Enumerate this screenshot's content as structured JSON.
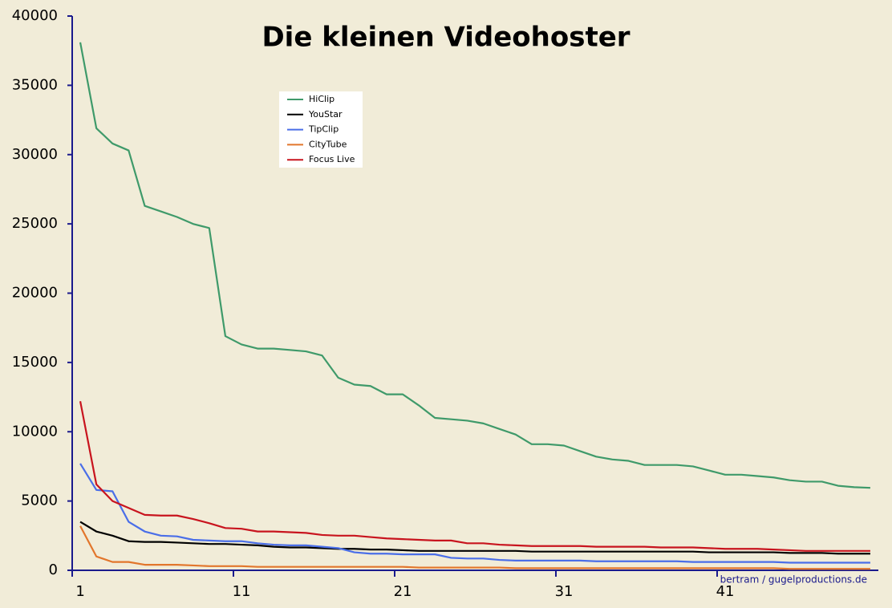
{
  "chart_data": {
    "type": "line",
    "title": "Die kleinen Videohoster",
    "annotation": "bertram / gugelproductions.de",
    "categories": [
      "1",
      null,
      null,
      null,
      null,
      null,
      null,
      null,
      null,
      null,
      "11",
      null,
      null,
      null,
      null,
      null,
      null,
      null,
      null,
      null,
      "21",
      null,
      null,
      null,
      null,
      null,
      null,
      null,
      null,
      null,
      "31",
      null,
      null,
      null,
      null,
      null,
      null,
      null,
      null,
      null,
      "41",
      null,
      null,
      null,
      null,
      null,
      null,
      null,
      null,
      null
    ],
    "ylim": [
      0,
      40000
    ],
    "yticks": [
      0,
      5000,
      10000,
      15000,
      20000,
      25000,
      30000,
      35000,
      40000
    ],
    "grid": false,
    "legend": "upper-left",
    "series": [
      {
        "name": "HiClip",
        "color": "#3f9a6a",
        "values": [
          38100,
          31900,
          30800,
          30300,
          26300,
          25900,
          25500,
          25000,
          24700,
          16900,
          16300,
          16000,
          16000,
          15900,
          15800,
          15500,
          13900,
          13400,
          13300,
          12700,
          12700,
          11900,
          11000,
          10900,
          10800,
          10600,
          10200,
          9800,
          9100,
          9100,
          9000,
          8600,
          8200,
          8000,
          7900,
          7600,
          7600,
          7600,
          7500,
          7200,
          6900,
          6900,
          6800,
          6700,
          6500,
          6400,
          6400,
          6100,
          6000,
          5950
        ]
      },
      {
        "name": "YouStar",
        "color": "#000000",
        "values": [
          3500,
          2800,
          2500,
          2100,
          2050,
          2050,
          2000,
          1950,
          1900,
          1900,
          1850,
          1800,
          1700,
          1650,
          1650,
          1600,
          1550,
          1550,
          1500,
          1500,
          1450,
          1400,
          1400,
          1400,
          1400,
          1400,
          1400,
          1400,
          1350,
          1350,
          1350,
          1350,
          1350,
          1350,
          1350,
          1350,
          1350,
          1350,
          1350,
          1300,
          1300,
          1300,
          1300,
          1300,
          1250,
          1250,
          1250,
          1200,
          1200,
          1200
        ]
      },
      {
        "name": "TipClip",
        "color": "#4a6ee8",
        "values": [
          7700,
          5800,
          5700,
          3500,
          2800,
          2500,
          2450,
          2200,
          2150,
          2100,
          2100,
          1950,
          1850,
          1800,
          1800,
          1700,
          1600,
          1300,
          1200,
          1200,
          1150,
          1150,
          1150,
          900,
          850,
          850,
          750,
          700,
          700,
          700,
          700,
          700,
          650,
          650,
          650,
          650,
          650,
          650,
          600,
          600,
          600,
          600,
          600,
          600,
          550,
          550,
          550,
          550,
          550,
          550
        ]
      },
      {
        "name": "CityTube",
        "color": "#e2762c",
        "values": [
          3200,
          1000,
          600,
          600,
          400,
          400,
          400,
          350,
          300,
          300,
          300,
          250,
          250,
          250,
          250,
          250,
          250,
          250,
          250,
          250,
          250,
          200,
          200,
          200,
          200,
          200,
          200,
          150,
          150,
          150,
          150,
          150,
          150,
          150,
          150,
          150,
          150,
          150,
          150,
          150,
          150,
          150,
          150,
          150,
          100,
          100,
          100,
          100,
          100,
          100
        ]
      },
      {
        "name": "Focus Live",
        "color": "#c8141e",
        "values": [
          12200,
          6200,
          5000,
          4500,
          4000,
          3950,
          3950,
          3700,
          3400,
          3050,
          3000,
          2800,
          2800,
          2750,
          2700,
          2550,
          2500,
          2500,
          2400,
          2300,
          2250,
          2200,
          2150,
          2150,
          1950,
          1950,
          1850,
          1800,
          1750,
          1750,
          1750,
          1750,
          1700,
          1700,
          1700,
          1700,
          1650,
          1650,
          1650,
          1600,
          1550,
          1550,
          1550,
          1500,
          1450,
          1400,
          1400,
          1400,
          1400,
          1400
        ]
      }
    ]
  }
}
